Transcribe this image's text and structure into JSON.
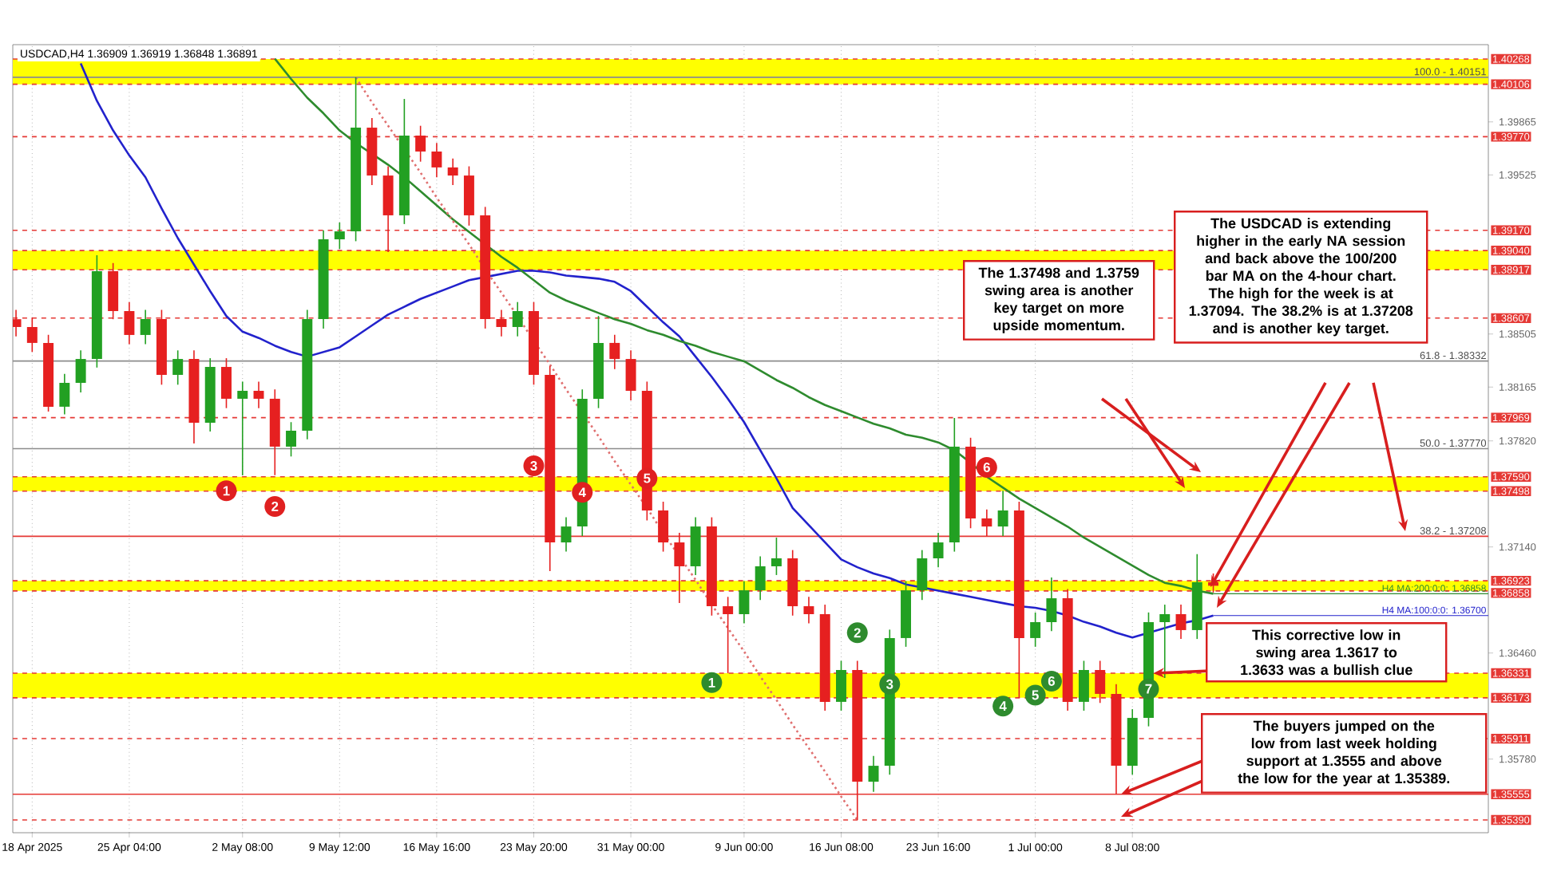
{
  "chart_data": {
    "type": "candlestick",
    "title": "USDCAD,H4  1.36909 1.36919 1.36848 1.36891",
    "categories": [
      null,
      "18 Apr 2025",
      null,
      null,
      null,
      null,
      null,
      "25 Apr 04:00",
      null,
      null,
      null,
      null,
      null,
      null,
      "2 May 08:00",
      null,
      null,
      null,
      null,
      null,
      "9 May 12:00",
      null,
      null,
      null,
      null,
      null,
      "16 May 16:00",
      null,
      null,
      null,
      null,
      null,
      "23 May 20:00",
      null,
      null,
      null,
      null,
      null,
      "31 May 00:00",
      null,
      null,
      null,
      null,
      null,
      null,
      "9 Jun 00:00",
      null,
      null,
      null,
      null,
      null,
      "16 Jun 08:00",
      null,
      null,
      null,
      null,
      null,
      "23 Jun 16:00",
      null,
      null,
      null,
      null,
      null,
      "1 Jul 00:00",
      null,
      null,
      null,
      null,
      null,
      "8 Jul 08:00",
      null,
      null,
      null,
      null,
      null
    ],
    "ohlc": [
      [
        1.386,
        1.3866,
        1.3849,
        1.3855
      ],
      [
        1.3855,
        1.3861,
        1.3839,
        1.38448
      ],
      [
        1.38448,
        1.385,
        1.38008,
        1.38039
      ],
      [
        1.38039,
        1.3825,
        1.3799,
        1.38192
      ],
      [
        1.38192,
        1.384,
        1.3813,
        1.38345
      ],
      [
        1.38345,
        1.3901,
        1.3829,
        1.38908
      ],
      [
        1.38908,
        1.3896,
        1.386,
        1.38652
      ],
      [
        1.38652,
        1.3871,
        1.3844,
        1.38499
      ],
      [
        1.38499,
        1.3866,
        1.3844,
        1.38601
      ],
      [
        1.38601,
        1.3866,
        1.3818,
        1.38243
      ],
      [
        1.38243,
        1.384,
        1.3818,
        1.38345
      ],
      [
        1.38345,
        1.384,
        1.37803,
        1.37936
      ],
      [
        1.37936,
        1.3835,
        1.3788,
        1.38294
      ],
      [
        1.38294,
        1.3835,
        1.3803,
        1.3809
      ],
      [
        1.3809,
        1.382,
        1.37599,
        1.38141
      ],
      [
        1.38141,
        1.382,
        1.3803,
        1.3809
      ],
      [
        1.3809,
        1.3815,
        1.376,
        1.37783
      ],
      [
        1.37783,
        1.3794,
        1.3772,
        1.37885
      ],
      [
        1.37885,
        1.3866,
        1.3783,
        1.38601
      ],
      [
        1.38601,
        1.3917,
        1.3854,
        1.39112
      ],
      [
        1.39112,
        1.3922,
        1.3905,
        1.39163
      ],
      [
        1.39163,
        1.40151,
        1.391,
        1.39828
      ],
      [
        1.39828,
        1.3989,
        1.3946,
        1.39521
      ],
      [
        1.39521,
        1.3958,
        1.39031,
        1.39266
      ],
      [
        1.39266,
        1.40012,
        1.3921,
        1.39777
      ],
      [
        1.39777,
        1.3984,
        1.3961,
        1.39675
      ],
      [
        1.39675,
        1.3973,
        1.3951,
        1.39573
      ],
      [
        1.39573,
        1.3963,
        1.3946,
        1.39521
      ],
      [
        1.39521,
        1.3958,
        1.392,
        1.39266
      ],
      [
        1.39266,
        1.3932,
        1.3854,
        1.38601
      ],
      [
        1.38601,
        1.3866,
        1.3849,
        1.3855
      ],
      [
        1.3855,
        1.3871,
        1.3849,
        1.38652
      ],
      [
        1.38652,
        1.3871,
        1.3818,
        1.38243
      ],
      [
        1.38243,
        1.383,
        1.36985,
        1.37169
      ],
      [
        1.37169,
        1.3733,
        1.3711,
        1.37271
      ],
      [
        1.37271,
        1.3815,
        1.3721,
        1.3809
      ],
      [
        1.3809,
        1.38621,
        1.3803,
        1.38448
      ],
      [
        1.38448,
        1.385,
        1.3828,
        1.38345
      ],
      [
        1.38345,
        1.384,
        1.3808,
        1.38141
      ],
      [
        1.38141,
        1.382,
        1.3731,
        1.37374
      ],
      [
        1.37374,
        1.3743,
        1.3711,
        1.37169
      ],
      [
        1.37169,
        1.3723,
        1.36781,
        1.37016
      ],
      [
        1.37016,
        1.3733,
        1.3696,
        1.37271
      ],
      [
        1.37271,
        1.3733,
        1.367,
        1.3676
      ],
      [
        1.3676,
        1.3682,
        1.36331,
        1.36709
      ],
      [
        1.36709,
        1.3692,
        1.3665,
        1.36862
      ],
      [
        1.36862,
        1.3708,
        1.368,
        1.37016
      ],
      [
        1.37016,
        1.372,
        1.3696,
        1.37067
      ],
      [
        1.37067,
        1.3712,
        1.367,
        1.3676
      ],
      [
        1.3676,
        1.3682,
        1.3665,
        1.36709
      ],
      [
        1.36709,
        1.3677,
        1.3609,
        1.36147
      ],
      [
        1.36147,
        1.3641,
        1.3609,
        1.36351
      ],
      [
        1.36351,
        1.3641,
        1.35389,
        1.35635
      ],
      [
        1.35635,
        1.358,
        1.3557,
        1.35737
      ],
      [
        1.35737,
        1.3661,
        1.3568,
        1.36556
      ],
      [
        1.36556,
        1.3692,
        1.365,
        1.36862
      ],
      [
        1.36862,
        1.3712,
        1.368,
        1.37067
      ],
      [
        1.37067,
        1.3723,
        1.3701,
        1.37169
      ],
      [
        1.37169,
        1.37967,
        1.3711,
        1.37783
      ],
      [
        1.37783,
        1.3784,
        1.3726,
        1.37323
      ],
      [
        1.37323,
        1.3738,
        1.3721,
        1.37271
      ],
      [
        1.37271,
        1.375,
        1.3721,
        1.37374
      ],
      [
        1.37374,
        1.3743,
        1.36173,
        1.36556
      ],
      [
        1.36556,
        1.3672,
        1.365,
        1.36658
      ],
      [
        1.36658,
        1.36944,
        1.366,
        1.36811
      ],
      [
        1.36811,
        1.3687,
        1.3609,
        1.36147
      ],
      [
        1.36147,
        1.3641,
        1.3609,
        1.36351
      ],
      [
        1.36351,
        1.3641,
        1.3614,
        1.36198
      ],
      [
        1.36198,
        1.3626,
        1.35555,
        1.35737
      ],
      [
        1.35737,
        1.361,
        1.3568,
        1.36044
      ],
      [
        1.36044,
        1.3672,
        1.3599,
        1.36658
      ],
      [
        1.36658,
        1.3677,
        1.363,
        1.36709
      ],
      [
        1.36709,
        1.3677,
        1.3655,
        1.36607
      ],
      [
        1.36607,
        1.37094,
        1.3655,
        1.36914
      ],
      [
        1.36914,
        1.3697,
        1.36848,
        1.36891
      ]
    ],
    "series": [
      {
        "type": "line",
        "name": "H4 MA:100:0:0: 1.36700",
        "color": "#2222cc",
        "values": [
          null,
          null,
          null,
          null,
          1.4024,
          1.4,
          1.3981,
          1.3965,
          1.3951,
          1.3931,
          1.3912,
          1.3895,
          1.3878,
          1.3862,
          1.3852,
          1.3848,
          1.3843,
          1.3839,
          1.3836,
          1.3839,
          1.3842,
          1.3849,
          1.3856,
          1.3863,
          1.3868,
          1.3873,
          1.3877,
          1.3881,
          1.3885,
          1.3887,
          1.3889,
          1.3891,
          1.3891,
          1.389,
          1.3888,
          1.3887,
          1.3886,
          1.3884,
          1.3878,
          1.3868,
          1.3858,
          1.3849,
          1.3836,
          1.3823,
          1.3809,
          1.3794,
          1.3776,
          1.3758,
          1.3739,
          1.3728,
          1.3717,
          1.3706,
          1.3701,
          1.3697,
          1.3694,
          1.369,
          1.3688,
          1.3686,
          1.3684,
          1.3682,
          1.368,
          1.3678,
          1.3676,
          1.3675,
          1.3673,
          1.367,
          1.3666,
          1.3663,
          1.3659,
          1.3656,
          1.3659,
          1.3662,
          1.3665,
          1.3667,
          1.367
        ]
      },
      {
        "type": "line",
        "name": "H4 MA:200:0:0: 1.36858",
        "color": "#2e8b2e",
        "values": [
          null,
          null,
          null,
          null,
          null,
          null,
          null,
          null,
          null,
          null,
          null,
          null,
          null,
          null,
          null,
          null,
          1.4027,
          1.4014,
          1.4002,
          1.3992,
          1.3981,
          1.3973,
          1.3966,
          1.3959,
          1.3951,
          1.3942,
          1.3933,
          1.3924,
          1.3916,
          1.3908,
          1.39,
          1.3893,
          1.3885,
          1.3877,
          1.3872,
          1.3868,
          1.3864,
          1.386,
          1.3857,
          1.3853,
          1.385,
          1.3846,
          1.3843,
          1.3839,
          1.3836,
          1.3833,
          1.3827,
          1.3821,
          1.3816,
          1.381,
          1.3805,
          1.3801,
          1.3797,
          1.3793,
          1.379,
          1.3786,
          1.3784,
          1.3781,
          1.3776,
          1.3768,
          1.3759,
          1.3752,
          1.3745,
          1.3739,
          1.3733,
          1.3727,
          1.372,
          1.3714,
          1.3708,
          1.3702,
          1.3696,
          1.3691,
          1.3689,
          1.3686,
          1.3684
        ]
      },
      {
        "type": "line",
        "color": "#e07070",
        "line_style": "dotted",
        "values": [
          null,
          null,
          null,
          null,
          null,
          null,
          null,
          null,
          null,
          null,
          null,
          null,
          null,
          null,
          null,
          null,
          null,
          null,
          null,
          null,
          null,
          1.4015,
          1.3999,
          1.3984,
          1.3969,
          1.3954,
          1.3938,
          1.3923,
          1.3908,
          1.3892,
          1.3877,
          1.3862,
          1.3846,
          1.3831,
          1.3815,
          1.38,
          1.3785,
          1.3769,
          1.3754,
          1.3739,
          1.3723,
          1.3708,
          1.3693,
          1.3677,
          1.3662,
          1.3647,
          1.3631,
          1.3616,
          1.36,
          1.3585,
          1.357,
          1.3554,
          1.3539,
          null,
          null,
          null,
          null,
          null,
          null,
          null,
          null,
          null,
          null,
          null,
          null,
          null,
          null,
          null,
          null,
          null,
          null,
          null,
          null,
          null,
          null
        ]
      },
      {
        "type": "scatter",
        "color": "#e02020",
        "marker": "circle",
        "values": [
          null,
          null,
          null,
          null,
          null,
          null,
          null,
          null,
          null,
          null,
          null,
          null,
          null,
          1.375,
          null,
          null,
          1.374,
          null,
          null,
          null,
          null,
          null,
          null,
          null,
          null,
          null,
          null,
          null,
          null,
          null,
          null,
          null,
          1.3766,
          null,
          null,
          1.3749,
          null,
          null,
          null,
          1.3758,
          null,
          null,
          null,
          null,
          null,
          null,
          null,
          null,
          null,
          null,
          null,
          null,
          null,
          null,
          null,
          null,
          null,
          null,
          null,
          null,
          1.3765,
          null,
          null,
          null,
          null,
          null,
          null,
          null,
          null,
          null,
          null,
          null,
          null,
          null,
          null
        ]
      },
      {
        "type": "scatter",
        "color": "#2e8b2e",
        "marker": "circle",
        "values": [
          null,
          null,
          null,
          null,
          null,
          null,
          null,
          null,
          null,
          null,
          null,
          null,
          null,
          null,
          null,
          null,
          null,
          null,
          null,
          null,
          null,
          null,
          null,
          null,
          null,
          null,
          null,
          null,
          null,
          null,
          null,
          null,
          null,
          null,
          null,
          null,
          null,
          null,
          null,
          null,
          null,
          null,
          null,
          1.3627,
          null,
          null,
          null,
          null,
          null,
          null,
          null,
          null,
          1.3659,
          null,
          1.3626,
          null,
          null,
          null,
          null,
          null,
          null,
          1.3612,
          null,
          1.3619,
          1.3628,
          null,
          null,
          null,
          null,
          null,
          1.3623,
          null,
          null,
          null,
          null
        ]
      }
    ],
    "bands": [
      {
        "axis": "y",
        "from": 1.40106,
        "to": 1.40268,
        "color": "#ffff00"
      },
      {
        "axis": "y",
        "from": 1.38917,
        "to": 1.3904,
        "color": "#ffff00"
      },
      {
        "axis": "y",
        "from": 1.37498,
        "to": 1.3759,
        "color": "#ffff00"
      },
      {
        "axis": "y",
        "from": 1.36858,
        "to": 1.36923,
        "color": "#ffff00"
      },
      {
        "axis": "y",
        "from": 1.36173,
        "to": 1.36331,
        "color": "#ffff00"
      }
    ],
    "ref_lines": [
      {
        "axis": "y",
        "value": 1.40268,
        "label": "1.40268",
        "color": "#e53935",
        "line_style": "dashed"
      },
      {
        "axis": "y",
        "value": 1.40106,
        "label": "1.40106",
        "color": "#e53935",
        "line_style": "dashed"
      },
      {
        "axis": "y",
        "value": 1.3977,
        "label": "1.39770",
        "color": "#e53935",
        "line_style": "dashed"
      },
      {
        "axis": "y",
        "value": 1.3917,
        "label": "1.39170",
        "color": "#e53935",
        "line_style": "dashed"
      },
      {
        "axis": "y",
        "value": 1.3904,
        "label": "1.39040",
        "color": "#e53935",
        "line_style": "dashed"
      },
      {
        "axis": "y",
        "value": 1.38917,
        "label": "1.38917",
        "color": "#e53935",
        "line_style": "dashed"
      },
      {
        "axis": "y",
        "value": 1.38607,
        "label": "1.38607",
        "color": "#e53935",
        "line_style": "dashed"
      },
      {
        "axis": "y",
        "value": 1.37969,
        "label": "1.37969",
        "color": "#e53935",
        "line_style": "dashed"
      },
      {
        "axis": "y",
        "value": 1.3759,
        "label": "1.37590",
        "color": "#e53935",
        "line_style": "dashed"
      },
      {
        "axis": "y",
        "value": 1.37498,
        "label": "1.37498",
        "color": "#e53935",
        "line_style": "dashed"
      },
      {
        "axis": "y",
        "value": 1.36923,
        "label": "1.36923",
        "color": "#e53935",
        "line_style": "dashed"
      },
      {
        "axis": "y",
        "value": 1.36858,
        "label": "1.36858",
        "color": "#e53935",
        "line_style": "dashed"
      },
      {
        "axis": "y",
        "value": 1.36331,
        "label": "1.36331",
        "color": "#e53935",
        "line_style": "dashed"
      },
      {
        "axis": "y",
        "value": 1.36173,
        "label": "1.36173",
        "color": "#e53935",
        "line_style": "dashed"
      },
      {
        "axis": "y",
        "value": 1.35911,
        "label": "1.35911",
        "color": "#e53935",
        "line_style": "dashed"
      },
      {
        "axis": "y",
        "value": 1.35555,
        "label": "1.35555",
        "color": "#e53935",
        "line_style": "solid"
      },
      {
        "axis": "y",
        "value": 1.3539,
        "label": "1.35390",
        "color": "#e53935",
        "line_style": "dashed"
      },
      {
        "axis": "y",
        "value": 1.40151,
        "color": "#8c8c8c",
        "line_style": "solid"
      },
      {
        "axis": "y",
        "value": 1.38332,
        "color": "#8c8c8c",
        "line_style": "solid"
      },
      {
        "axis": "y",
        "value": 1.3777,
        "color": "#8c8c8c",
        "line_style": "solid"
      },
      {
        "axis": "y",
        "value": 1.37208,
        "color": "#e53935",
        "line_style": "solid"
      }
    ],
    "annotations": [
      "The 1.37498 and 1.3759 swing area is another key target on more upside momentum.",
      "The USDCAD is extending higher in the early NA session and back above the 100/200 bar MA on the 4-hour chart.  The high for the week is at 1.37094. The 38.2% is at 1.37208 and is another key target.",
      {
        "text": "This corrective low in swing area 1.3617 to 1.3633 was a bullish clue",
        "y": 1.3633
      },
      {
        "text": "The buyers jumped on the low from last week holding support at 1.3555 and above the low for the year at 1.35389.",
        "y": 1.35555
      },
      {
        "text": "100.0 - 1.40151",
        "y": 1.40151
      },
      {
        "text": "61.8 - 1.38332",
        "y": 1.38332
      },
      {
        "text": "50.0 - 1.37770",
        "y": 1.3777
      },
      {
        "text": "38.2 - 1.37208",
        "y": 1.37208
      },
      {
        "text": "1",
        "y": 1.375
      },
      {
        "text": "2",
        "y": 1.374
      },
      {
        "text": "3",
        "y": 1.3766
      },
      {
        "text": "4",
        "y": 1.3749
      },
      {
        "text": "5",
        "y": 1.3758
      },
      {
        "text": "6",
        "y": 1.3765
      },
      {
        "text": "1",
        "y": 1.3627
      },
      {
        "text": "2",
        "y": 1.3659
      },
      {
        "text": "3",
        "y": 1.3626
      },
      {
        "text": "4",
        "y": 1.3612
      },
      {
        "text": "5",
        "y": 1.3619
      },
      {
        "text": "6",
        "y": 1.3628
      },
      {
        "text": "7",
        "y": 1.3623
      }
    ],
    "ylim": [
      1.35308,
      1.4036
    ],
    "yticks": [
      1.39865,
      1.39525,
      1.38505,
      1.38165,
      {
        "value": 1.3782,
        "label": "1.37820"
      },
      {
        "value": 1.3714,
        "label": "1.37140"
      },
      {
        "value": 1.3646,
        "label": "1.36460"
      },
      {
        "value": 1.3578,
        "label": "1.35780"
      }
    ],
    "grid": "x"
  }
}
